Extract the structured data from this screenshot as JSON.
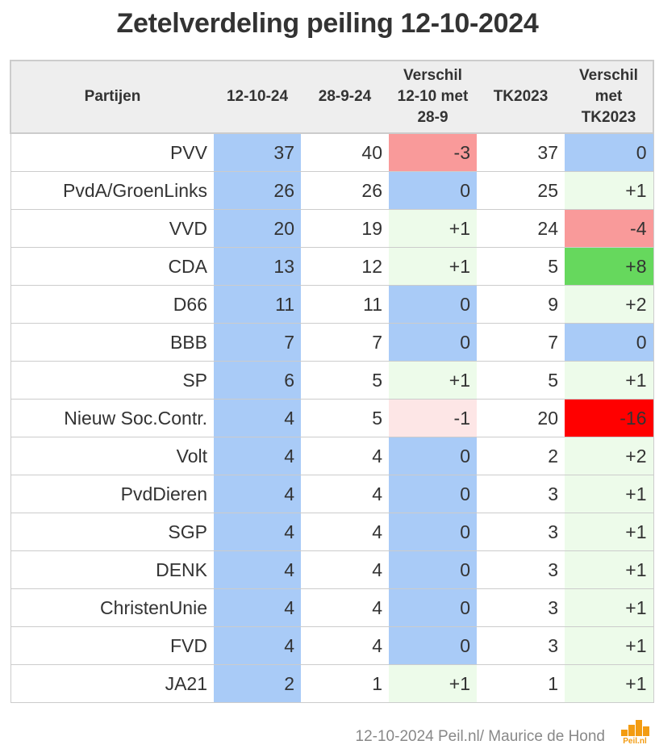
{
  "title": "Zetelverdeling peiling 12-10-2024",
  "footer": "12-10-2024 Peil.nl/ Maurice de Hond",
  "logo_text": "Peil.nl",
  "colors": {
    "blue": "#a9cbf7",
    "light_green": "#edfbea",
    "green": "#66d85d",
    "light_red": "#fde6e6",
    "salmon": "#f99a9a",
    "red": "#ff0000",
    "header_bg": "#eeeeee"
  },
  "chart_data": {
    "type": "table",
    "title": "Zetelverdeling peiling 12-10-2024",
    "columns": [
      "Partijen",
      "12-10-24",
      "28-9-24",
      "Verschil 12-10 met 28-9",
      "TK2023",
      "Verschil met TK2023"
    ],
    "rows": [
      {
        "party": "PVV",
        "current": "37",
        "previous": "40",
        "diff_prev": "-3",
        "tk2023": "37",
        "diff_tk": "0"
      },
      {
        "party": "PvdA/GroenLinks",
        "current": "26",
        "previous": "26",
        "diff_prev": "0",
        "tk2023": "25",
        "diff_tk": "+1"
      },
      {
        "party": "VVD",
        "current": "20",
        "previous": "19",
        "diff_prev": "+1",
        "tk2023": "24",
        "diff_tk": "-4"
      },
      {
        "party": "CDA",
        "current": "13",
        "previous": "12",
        "diff_prev": "+1",
        "tk2023": "5",
        "diff_tk": "+8"
      },
      {
        "party": "D66",
        "current": "11",
        "previous": "11",
        "diff_prev": "0",
        "tk2023": "9",
        "diff_tk": "+2"
      },
      {
        "party": "BBB",
        "current": "7",
        "previous": "7",
        "diff_prev": "0",
        "tk2023": "7",
        "diff_tk": "0"
      },
      {
        "party": "SP",
        "current": "6",
        "previous": "5",
        "diff_prev": "+1",
        "tk2023": "5",
        "diff_tk": "+1"
      },
      {
        "party": "Nieuw Soc.Contr.",
        "current": "4",
        "previous": "5",
        "diff_prev": "-1",
        "tk2023": "20",
        "diff_tk": "-16"
      },
      {
        "party": "Volt",
        "current": "4",
        "previous": "4",
        "diff_prev": "0",
        "tk2023": "2",
        "diff_tk": "+2"
      },
      {
        "party": "PvdDieren",
        "current": "4",
        "previous": "4",
        "diff_prev": "0",
        "tk2023": "3",
        "diff_tk": "+1"
      },
      {
        "party": "SGP",
        "current": "4",
        "previous": "4",
        "diff_prev": "0",
        "tk2023": "3",
        "diff_tk": "+1"
      },
      {
        "party": "DENK",
        "current": "4",
        "previous": "4",
        "diff_prev": "0",
        "tk2023": "3",
        "diff_tk": "+1"
      },
      {
        "party": "ChristenUnie",
        "current": "4",
        "previous": "4",
        "diff_prev": "0",
        "tk2023": "3",
        "diff_tk": "+1"
      },
      {
        "party": "FVD",
        "current": "4",
        "previous": "4",
        "diff_prev": "0",
        "tk2023": "3",
        "diff_tk": "+1"
      },
      {
        "party": "JA21",
        "current": "2",
        "previous": "1",
        "diff_prev": "+1",
        "tk2023": "1",
        "diff_tk": "+1"
      }
    ]
  }
}
